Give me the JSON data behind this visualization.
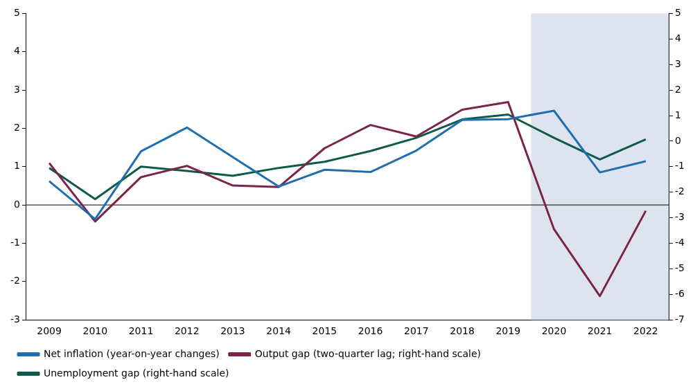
{
  "chart_data": {
    "type": "line",
    "categories": [
      "2009",
      "2010",
      "2011",
      "2012",
      "2013",
      "2014",
      "2015",
      "2016",
      "2017",
      "2018",
      "2019",
      "2020",
      "2021",
      "2022"
    ],
    "series": [
      {
        "name": "Net inflation (year-on-year changes)",
        "color": "#1f6fae",
        "values": [
          0.62,
          -0.37,
          1.4,
          2.02,
          1.25,
          0.48,
          0.92,
          0.86,
          1.42,
          2.22,
          2.24,
          2.46,
          0.85,
          1.14
        ]
      },
      {
        "name": "Output gap (two-quarter lag; right-hand scale)",
        "color": "#7a2449",
        "axis": "y2",
        "values": [
          -0.86,
          -3.15,
          -1.41,
          -0.97,
          -1.74,
          -1.8,
          -0.28,
          0.63,
          0.18,
          1.23,
          1.53,
          -3.45,
          -6.07,
          -2.73
        ]
      },
      {
        "name": "Unemployment gap (right-hand scale)",
        "color": "#0e5a4a",
        "axis": "y2",
        "values": [
          -1.05,
          -2.27,
          -1.0,
          -1.17,
          -1.36,
          -1.05,
          -0.81,
          -0.39,
          0.13,
          0.85,
          1.04,
          0.13,
          -0.72,
          0.07
        ]
      }
    ],
    "ylim": [
      -3,
      5
    ],
    "yticks": [
      -3,
      -2,
      -1,
      0,
      1,
      2,
      3,
      4,
      5
    ],
    "y2lim": [
      -7,
      5
    ],
    "y2ticks": [
      -7,
      -6,
      -5,
      -4,
      -3,
      -2,
      -1,
      0,
      1,
      2,
      3,
      4,
      5
    ],
    "bands": [
      {
        "axis": "x",
        "from": "2020",
        "to": "2022",
        "color": "#dde4ef"
      }
    ],
    "legend": "bottom",
    "marker": "none",
    "line_style": "solid"
  }
}
